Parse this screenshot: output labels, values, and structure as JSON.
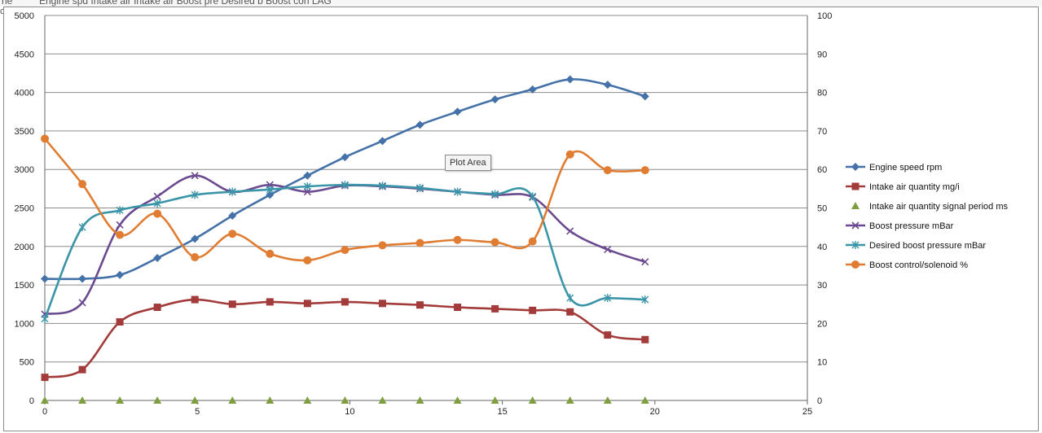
{
  "window": {
    "tab_left": "ne",
    "tab_text": "Engine spd Intake air Intake air Boost pre Desired b Boost con LAG",
    "side_mark": "co"
  },
  "tooltip": "Plot Area",
  "colors": {
    "engine_speed": "#4472a8",
    "intake_air": "#a33b3b",
    "signal_period": "#7f9e3f",
    "boost_pressure": "#6b4a90",
    "desired_boost": "#3b95a8",
    "boost_control": "#e07d33",
    "gridline": "#8c8c8c"
  },
  "chart_data": {
    "type": "line",
    "title": "",
    "xlabel": "",
    "ylabel": "",
    "xlim": [
      0,
      25
    ],
    "ylim": [
      0,
      5000
    ],
    "y2lim": [
      0,
      100
    ],
    "x_ticks": [
      "0",
      "5",
      "10",
      "15",
      "20",
      "25"
    ],
    "y_ticks": [
      "0",
      "500",
      "1000",
      "1500",
      "2000",
      "2500",
      "3000",
      "3500",
      "4000",
      "4500",
      "5000"
    ],
    "y2_ticks": [
      "0",
      "10",
      "20",
      "30",
      "40",
      "50",
      "60",
      "70",
      "80",
      "90",
      "100"
    ],
    "grid": "horizontal",
    "legend_position": "right",
    "x": [
      0,
      1.23,
      2.46,
      3.69,
      4.92,
      6.15,
      7.38,
      8.61,
      9.84,
      11.07,
      12.3,
      13.53,
      14.76,
      15.99,
      17.22,
      18.45,
      19.68
    ],
    "series": [
      {
        "name": "Engine speed rpm",
        "axis": "left",
        "marker": "diamond",
        "color_key": "engine_speed",
        "values": [
          1580,
          1580,
          1630,
          1850,
          2100,
          2400,
          2670,
          2920,
          3160,
          3370,
          3580,
          3750,
          3910,
          4040,
          4170,
          4100,
          3950
        ]
      },
      {
        "name": "Intake air quantity mg/i",
        "axis": "left",
        "marker": "square",
        "color_key": "intake_air",
        "values": [
          300,
          400,
          1020,
          1210,
          1310,
          1250,
          1280,
          1260,
          1280,
          1260,
          1240,
          1210,
          1190,
          1170,
          1150,
          850,
          790
        ]
      },
      {
        "name": "Intake air quantity signal period ms",
        "axis": "left",
        "marker": "triangle",
        "color_key": "signal_period",
        "values": [
          0,
          0,
          0,
          0,
          0,
          0,
          0,
          0,
          0,
          0,
          0,
          0,
          0,
          0,
          0,
          0,
          0
        ]
      },
      {
        "name": "Boost pressure mBar",
        "axis": "left",
        "marker": "x",
        "color_key": "boost_pressure",
        "values": [
          1120,
          1270,
          2280,
          2650,
          2920,
          2710,
          2800,
          2710,
          2790,
          2780,
          2750,
          2710,
          2670,
          2640,
          2200,
          1960,
          1800
        ]
      },
      {
        "name": "Desired boost pressure mBar",
        "axis": "left",
        "marker": "star",
        "color_key": "desired_boost",
        "values": [
          1060,
          2250,
          2470,
          2560,
          2670,
          2710,
          2740,
          2780,
          2800,
          2790,
          2760,
          2710,
          2680,
          2650,
          1330,
          1330,
          1310
        ]
      },
      {
        "name": "Boost control/solenoid %",
        "axis": "right",
        "marker": "circle",
        "color_key": "boost_control",
        "values": [
          68,
          56.2,
          43,
          48.5,
          37.2,
          43.3,
          38.1,
          36.4,
          39.1,
          40.3,
          40.9,
          41.7,
          41.1,
          41.3,
          63.9,
          59.8,
          59.8
        ]
      }
    ]
  }
}
